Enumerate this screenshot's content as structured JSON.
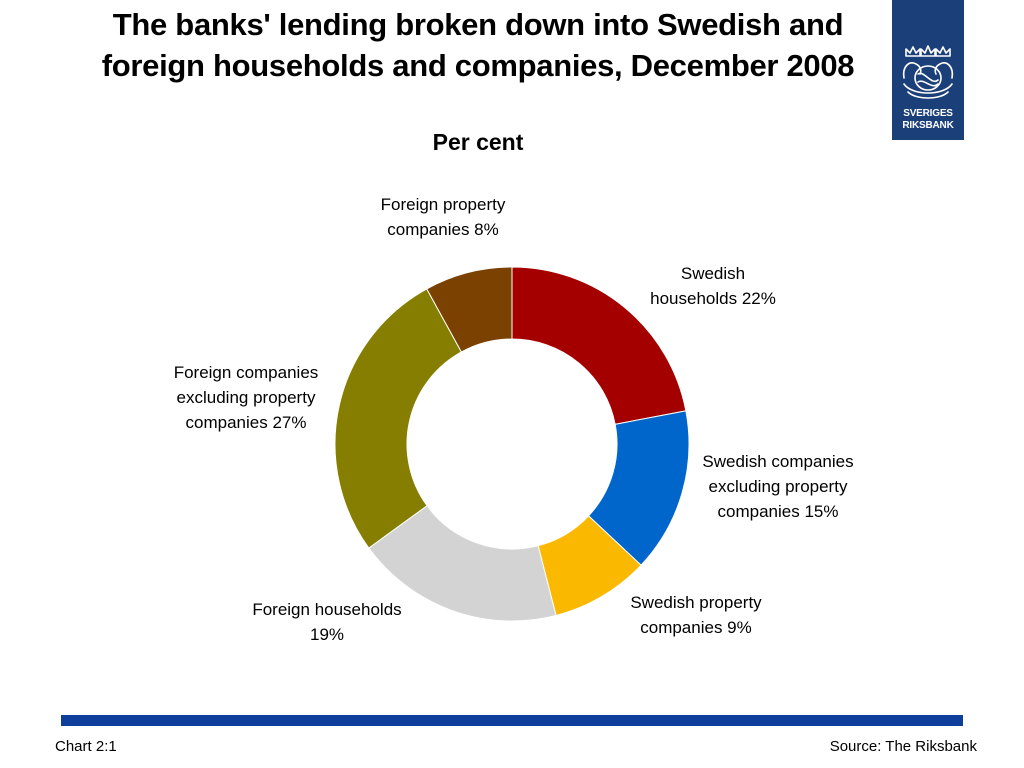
{
  "header": {
    "title": "The banks' lending broken down into Swedish and foreign households and companies, December 2008",
    "subtitle": "Per cent"
  },
  "logo": {
    "line1": "SVERIGES",
    "line2": "RIKSBANK",
    "background": "#1b3f79",
    "icon": "riksbank-crest-icon"
  },
  "chart_data": {
    "type": "pie",
    "variant": "donut",
    "title": "The banks' lending broken down into Swedish and foreign households and companies, December 2008",
    "subtitle": "Per cent",
    "unit": "%",
    "start_angle_deg": 0,
    "direction": "clockwise",
    "slices": [
      {
        "key": "swedish-households",
        "label": "Swedish\nhouseholds 22%",
        "value": 22,
        "color": "#a50000"
      },
      {
        "key": "swedish-companies",
        "label": "Swedish companies\nexcluding property\ncompanies 15%",
        "value": 15,
        "color": "#0066cc"
      },
      {
        "key": "swedish-property",
        "label": "Swedish property\ncompanies 9%",
        "value": 9,
        "color": "#fab900"
      },
      {
        "key": "foreign-households",
        "label": "Foreign households\n19%",
        "value": 19,
        "color": "#d3d3d3"
      },
      {
        "key": "foreign-companies",
        "label": "Foreign companies\nexcluding property\ncompanies 27%",
        "value": 27,
        "color": "#857e00"
      },
      {
        "key": "foreign-property",
        "label": "Foreign property\ncompanies 8%",
        "value": 8,
        "color": "#7b4100"
      }
    ],
    "legend": "none"
  },
  "footer": {
    "chart_id": "Chart 2:1",
    "source": "Source: The Riksbank",
    "bar_color": "#0e3e9c"
  }
}
